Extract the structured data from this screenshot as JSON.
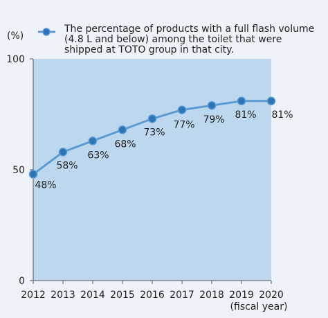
{
  "chart_data": {
    "type": "line",
    "legend": {
      "lines": [
        "The percentage of products with a full flash volume",
        "(4.8 L and below) among the toilet that were",
        "shipped at TOTO group in that city."
      ],
      "placement": "top"
    },
    "y_unit_label": "(%)",
    "x_unit_label": "(fiscal year)",
    "x": [
      "2012",
      "2013",
      "2014",
      "2015",
      "2016",
      "2017",
      "2018",
      "2019",
      "2020"
    ],
    "series": [
      {
        "values": [
          48,
          58,
          63,
          68,
          73,
          77,
          79,
          81,
          81
        ],
        "data_labels": [
          "48%",
          "58%",
          "63%",
          "68%",
          "73%",
          "77%",
          "79%",
          "81%",
          "81%"
        ]
      }
    ],
    "ylim": [
      0,
      100
    ],
    "y_ticks": [
      0,
      50,
      100
    ],
    "grid": false,
    "colors": {
      "line": "#5b9bd5",
      "marker": "#2e75b6",
      "plot_background": "#bdd7ee",
      "page_background": "#eef3f9"
    }
  }
}
